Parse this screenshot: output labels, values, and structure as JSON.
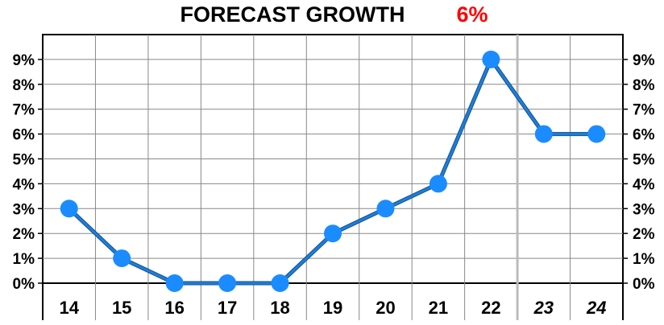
{
  "chart_data": {
    "type": "line",
    "title": "FORECAST GROWTH",
    "title_value": "6%",
    "title_value_color": "#ff0000",
    "categories": [
      "14",
      "15",
      "16",
      "17",
      "18",
      "19",
      "20",
      "21",
      "22",
      "23",
      "24"
    ],
    "forecast_categories": [
      "23",
      "24"
    ],
    "values": [
      3,
      1,
      0,
      0,
      0,
      2,
      3,
      4,
      9,
      6,
      6
    ],
    "ylim": [
      0,
      10
    ],
    "y_ticks": [
      {
        "value": 0,
        "label": "0%"
      },
      {
        "value": 1,
        "label": "1%"
      },
      {
        "value": 2,
        "label": "2%"
      },
      {
        "value": 3,
        "label": "3%"
      },
      {
        "value": 4,
        "label": "4%"
      },
      {
        "value": 5,
        "label": "5%"
      },
      {
        "value": 6,
        "label": "6%"
      },
      {
        "value": 7,
        "label": "7%"
      },
      {
        "value": 8,
        "label": "8%"
      },
      {
        "value": 9,
        "label": "9%"
      }
    ],
    "xlabel": "",
    "ylabel": "",
    "grid": true,
    "y_axis_both_sides": true,
    "line_color": "#1a7fe0",
    "marker_color": "#1a8cff",
    "grid_color": "#888888"
  }
}
